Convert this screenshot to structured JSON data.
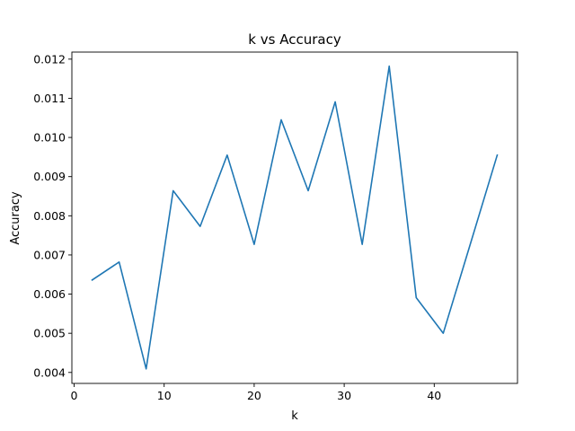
{
  "chart_data": {
    "type": "line",
    "title": "k vs Accuracy",
    "xlabel": "k",
    "ylabel": "Accuracy",
    "xlim": [
      -0.25,
      49.25
    ],
    "ylim": [
      0.00372,
      0.01218
    ],
    "xticks": [
      0,
      10,
      20,
      30,
      40
    ],
    "yticks": [
      0.004,
      0.005,
      0.006,
      0.007,
      0.008,
      0.009,
      0.01,
      0.011,
      0.012
    ],
    "ytick_labels": [
      "0.004",
      "0.005",
      "0.006",
      "0.007",
      "0.008",
      "0.009",
      "0.010",
      "0.011",
      "0.012"
    ],
    "grid": false,
    "line_color": "#1f77b4",
    "series": [
      {
        "x": [
          2,
          5,
          8,
          11,
          14,
          17,
          20,
          23,
          26,
          29,
          32,
          35,
          38,
          41,
          44,
          47
        ],
        "values": [
          0.00636,
          0.00682,
          0.00409,
          0.00864,
          0.00773,
          0.00955,
          0.00727,
          0.01045,
          0.00864,
          0.01091,
          0.00727,
          0.01182,
          0.00591,
          0.005,
          0.00727,
          0.00955
        ]
      }
    ]
  }
}
